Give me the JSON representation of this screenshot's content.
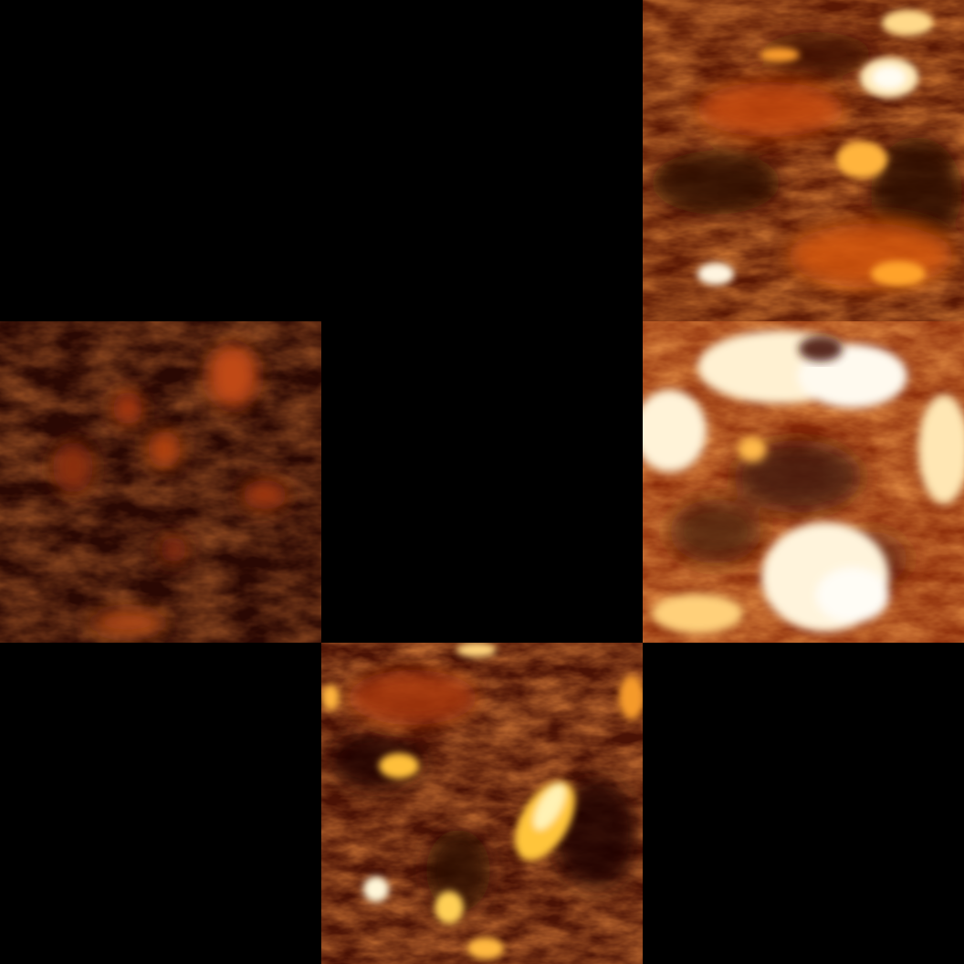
{
  "grid": {
    "rows": 3,
    "cols": 3,
    "background_color": "#000000"
  },
  "tiles": [
    {
      "row": 0,
      "col": 0,
      "type": "empty",
      "description_name": "empty-tile"
    },
    {
      "row": 0,
      "col": 1,
      "type": "empty",
      "description_name": "empty-tile"
    },
    {
      "row": 0,
      "col": 2,
      "type": "fire-texture",
      "intensity": "medium-high",
      "palette": [
        "#3a0a02",
        "#8a2406",
        "#d2500e",
        "#f59a2a",
        "#fff6da"
      ]
    },
    {
      "row": 1,
      "col": 0,
      "type": "fire-texture",
      "intensity": "low",
      "palette": [
        "#1e0502",
        "#3f0e04",
        "#6e1e07",
        "#a8390d",
        "#e0661c"
      ]
    },
    {
      "row": 1,
      "col": 1,
      "type": "empty",
      "description_name": "empty-tile"
    },
    {
      "row": 1,
      "col": 2,
      "type": "fire-texture",
      "intensity": "high",
      "palette": [
        "#3a1005",
        "#a63a0c",
        "#e86a18",
        "#ffc25a",
        "#fff8e6"
      ]
    },
    {
      "row": 2,
      "col": 0,
      "type": "empty",
      "description_name": "empty-tile"
    },
    {
      "row": 2,
      "col": 1,
      "type": "fire-texture",
      "intensity": "medium",
      "palette": [
        "#1e0603",
        "#6a1a06",
        "#bf450e",
        "#f3951f",
        "#fff0b4"
      ]
    },
    {
      "row": 2,
      "col": 2,
      "type": "empty",
      "description_name": "empty-tile"
    }
  ]
}
